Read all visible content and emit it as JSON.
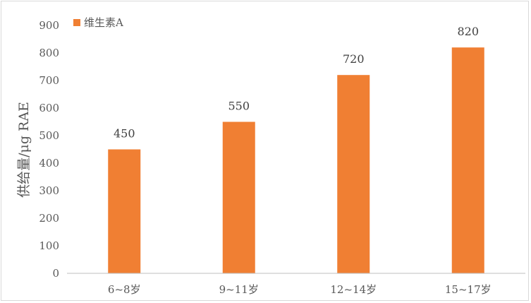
{
  "chart_data": {
    "type": "bar",
    "categories": [
      "6~8岁",
      "9~11岁",
      "12~14岁",
      "15~17岁"
    ],
    "series": [
      {
        "name": "维生素A",
        "values": [
          450,
          550,
          720,
          820
        ],
        "color": "#f07f33"
      }
    ],
    "ylabel": "供给量/μg RAE",
    "xlabel": "",
    "ylim": [
      0,
      900
    ],
    "yticks": [
      0,
      100,
      200,
      300,
      400,
      500,
      600,
      700,
      800,
      900
    ],
    "grid": false,
    "legend_position": "top-left",
    "axis_color": "#bfbfbf"
  }
}
